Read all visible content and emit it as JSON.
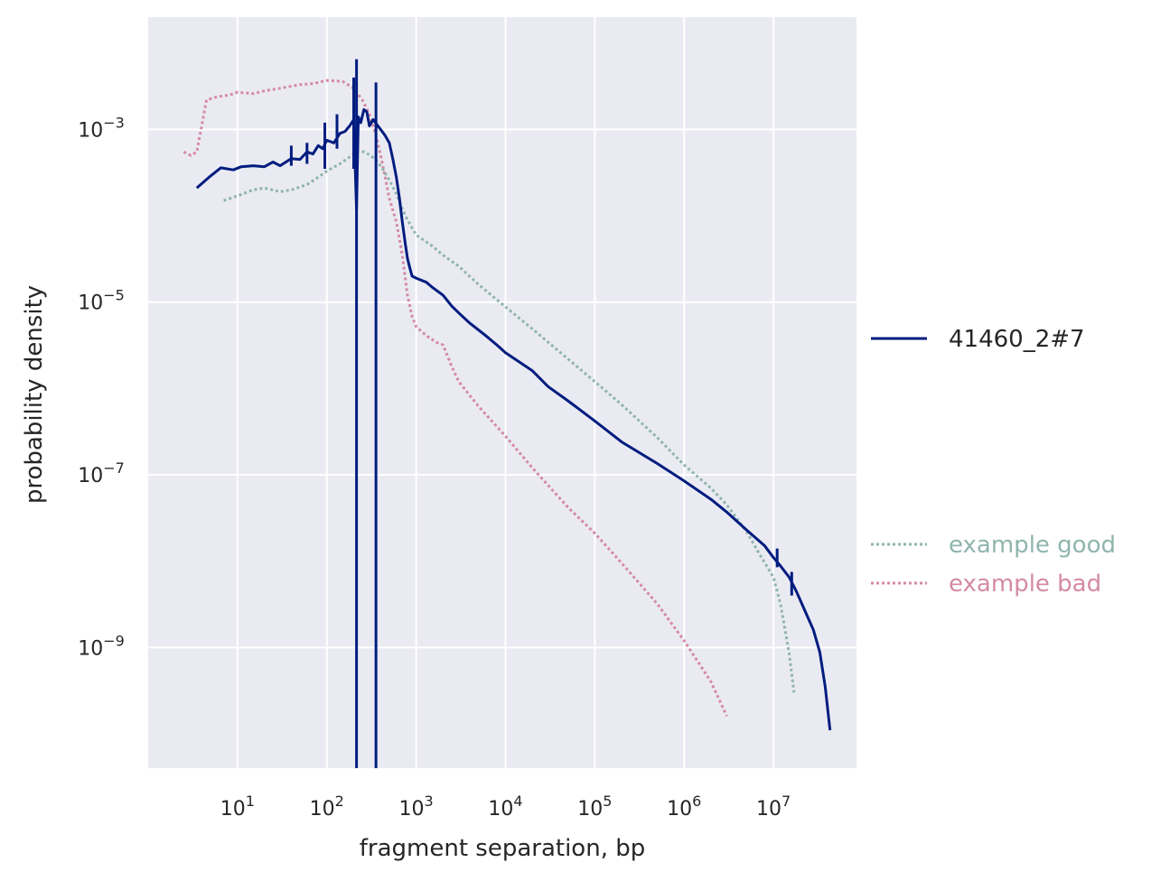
{
  "chart_data": {
    "type": "line",
    "title": "",
    "xlabel": "fragment separation, bp",
    "ylabel": "probability density",
    "xscale": "log",
    "yscale": "log",
    "xlim": [
      1.0,
      85000000
    ],
    "ylim": [
      4e-11,
      0.02
    ],
    "grid": true,
    "x_ticks": [
      {
        "value": 10,
        "base": "10",
        "exp": "1"
      },
      {
        "value": 100,
        "base": "10",
        "exp": "2"
      },
      {
        "value": 1000,
        "base": "10",
        "exp": "3"
      },
      {
        "value": 10000,
        "base": "10",
        "exp": "4"
      },
      {
        "value": 100000,
        "base": "10",
        "exp": "5"
      },
      {
        "value": 1000000,
        "base": "10",
        "exp": "6"
      },
      {
        "value": 10000000,
        "base": "10",
        "exp": "7"
      }
    ],
    "y_ticks": [
      {
        "value": 0.001,
        "base": "10",
        "exp": "−3"
      },
      {
        "value": 1e-05,
        "base": "10",
        "exp": "−5"
      },
      {
        "value": 1e-07,
        "base": "10",
        "exp": "−7"
      },
      {
        "value": 1e-09,
        "base": "10",
        "exp": "−9"
      }
    ],
    "legend": [
      {
        "name": "41460_2#7",
        "color": "#001c7f",
        "style": "solid",
        "placement": "right-middle"
      },
      {
        "name": "example good",
        "color": "#8fb5ad",
        "style": "dotted",
        "placement": "right-lower"
      },
      {
        "name": "example bad",
        "color": "#d48aa6",
        "style": "dotted",
        "placement": "right-lower"
      }
    ],
    "series": [
      {
        "name": "41460_2#7",
        "color": "#001c7f",
        "style": "solid",
        "points": [
          [
            3.5,
            0.00021
          ],
          [
            5,
            0.00029
          ],
          [
            6.5,
            0.00036
          ],
          [
            9,
            0.00034
          ],
          [
            11,
            0.00037
          ],
          [
            15,
            0.00038
          ],
          [
            20,
            0.00037
          ],
          [
            25,
            0.00042
          ],
          [
            30,
            0.00038
          ],
          [
            40,
            0.00046
          ],
          [
            50,
            0.00045
          ],
          [
            60,
            0.00055
          ],
          [
            70,
            0.00052
          ],
          [
            80,
            0.00065
          ],
          [
            90,
            0.0006
          ],
          [
            100,
            0.00075
          ],
          [
            120,
            0.0007
          ],
          [
            140,
            0.0009
          ],
          [
            160,
            0.00095
          ],
          [
            180,
            0.0011
          ],
          [
            200,
            0.0013
          ],
          [
            215,
            0.00012
          ],
          [
            225,
            0.0014
          ],
          [
            240,
            0.0012
          ],
          [
            260,
            0.0017
          ],
          [
            280,
            0.0016
          ],
          [
            300,
            0.0011
          ],
          [
            330,
            0.0013
          ],
          [
            350,
            0.0012
          ],
          [
            400,
            0.001
          ],
          [
            450,
            0.00085
          ],
          [
            500,
            0.0007
          ],
          [
            550,
            0.00045
          ],
          [
            600,
            0.00028
          ],
          [
            650,
            0.00016
          ],
          [
            700,
            8.5e-05
          ],
          [
            750,
            5e-05
          ],
          [
            800,
            3.2e-05
          ],
          [
            850,
            2.5e-05
          ],
          [
            900,
            2e-05
          ],
          [
            1000,
            1.9e-05
          ],
          [
            1300,
            1.7e-05
          ],
          [
            1500,
            1.5e-05
          ],
          [
            2000,
            1.2e-05
          ],
          [
            2500,
            9e-06
          ],
          [
            3000,
            7.5e-06
          ],
          [
            4000,
            5.7e-06
          ],
          [
            6000,
            4.1e-06
          ],
          [
            8000,
            3.2e-06
          ],
          [
            10000,
            2.6e-06
          ],
          [
            20000,
            1.6e-06
          ],
          [
            30000,
            1.05e-06
          ],
          [
            50000,
            7.2e-07
          ],
          [
            100000,
            4.2e-07
          ],
          [
            200000,
            2.4e-07
          ],
          [
            500000,
            1.35e-07
          ],
          [
            1000000,
            8.5e-08
          ],
          [
            2000000,
            5.2e-08
          ],
          [
            3000000,
            3.7e-08
          ],
          [
            5000000,
            2.3e-08
          ],
          [
            8000000,
            1.5e-08
          ],
          [
            10000000,
            1.1e-08
          ],
          [
            12000000,
            8.8e-09
          ],
          [
            15000000,
            6.5e-09
          ],
          [
            18000000,
            4.5e-09
          ],
          [
            22000000,
            2.8e-09
          ],
          [
            28000000,
            1.6e-09
          ],
          [
            33000000,
            8.8e-10
          ],
          [
            38000000,
            3.5e-10
          ],
          [
            43000000,
            1.1e-10
          ]
        ],
        "spikes": [
          {
            "x": 215,
            "y_min": 4e-11,
            "y_max": 0.0065
          },
          {
            "x": 355,
            "y_min": 4e-11,
            "y_max": 0.0035
          },
          {
            "x": 200,
            "y_min": 0.00035,
            "y_max": 0.004
          },
          {
            "x": 95,
            "y_min": 0.00035,
            "y_max": 0.0012
          },
          {
            "x": 130,
            "y_min": 0.0006,
            "y_max": 0.0015
          },
          {
            "x": 40,
            "y_min": 0.00038,
            "y_max": 0.00065
          },
          {
            "x": 60,
            "y_min": 0.0004,
            "y_max": 0.0007
          },
          {
            "x": 16000000,
            "y_min": 4e-09,
            "y_max": 7.5e-09
          },
          {
            "x": 11000000,
            "y_min": 8.5e-09,
            "y_max": 1.4e-08
          }
        ]
      },
      {
        "name": "example good",
        "color": "#8fb5ad",
        "style": "dotted",
        "points": [
          [
            7,
            0.00015
          ],
          [
            10,
            0.00017
          ],
          [
            15,
            0.0002
          ],
          [
            20,
            0.00021
          ],
          [
            30,
            0.00019
          ],
          [
            40,
            0.0002
          ],
          [
            60,
            0.00023
          ],
          [
            80,
            0.00028
          ],
          [
            100,
            0.00033
          ],
          [
            140,
            0.0004
          ],
          [
            180,
            0.00048
          ],
          [
            220,
            0.00056
          ],
          [
            260,
            0.00055
          ],
          [
            300,
            0.00051
          ],
          [
            350,
            0.00045
          ],
          [
            420,
            0.00035
          ],
          [
            500,
            0.00026
          ],
          [
            600,
            0.00018
          ],
          [
            700,
            0.00012
          ],
          [
            800,
            9e-05
          ],
          [
            1000,
            6e-05
          ],
          [
            1500,
            4.5e-05
          ],
          [
            2000,
            3.5e-05
          ],
          [
            3000,
            2.6e-05
          ],
          [
            5000,
            1.6e-05
          ],
          [
            10000,
            8.8e-06
          ],
          [
            20000,
            4.9e-06
          ],
          [
            50000,
            2.2e-06
          ],
          [
            100000,
            1.2e-06
          ],
          [
            200000,
            6.5e-07
          ],
          [
            500000,
            2.7e-07
          ],
          [
            1000000,
            1.3e-07
          ],
          [
            2000000,
            7e-08
          ],
          [
            3000000,
            4.5e-08
          ],
          [
            5000000,
            2.2e-08
          ],
          [
            7000000,
            1.2e-08
          ],
          [
            10000000,
            6.5e-09
          ],
          [
            12000000,
            3.2e-09
          ],
          [
            15000000,
            8.5e-10
          ],
          [
            17000000,
            3e-10
          ]
        ]
      },
      {
        "name": "example bad",
        "color": "#d48aa6",
        "style": "dotted",
        "points": [
          [
            2.5,
            0.00055
          ],
          [
            3,
            0.0005
          ],
          [
            3.5,
            0.00055
          ],
          [
            4.5,
            0.0022
          ],
          [
            6,
            0.0024
          ],
          [
            8,
            0.0025
          ],
          [
            10,
            0.0027
          ],
          [
            15,
            0.0026
          ],
          [
            20,
            0.0028
          ],
          [
            30,
            0.003
          ],
          [
            50,
            0.0033
          ],
          [
            70,
            0.0034
          ],
          [
            100,
            0.0037
          ],
          [
            150,
            0.0036
          ],
          [
            200,
            0.003
          ],
          [
            250,
            0.0022
          ],
          [
            300,
            0.0015
          ],
          [
            350,
            0.0009
          ],
          [
            400,
            0.0005
          ],
          [
            450,
            0.00028
          ],
          [
            500,
            0.00016
          ],
          [
            600,
            8.5e-05
          ],
          [
            700,
            3.5e-05
          ],
          [
            800,
            1.2e-05
          ],
          [
            900,
            6.8e-06
          ],
          [
            1000,
            5.2e-06
          ],
          [
            1300,
            4.1e-06
          ],
          [
            1700,
            3.4e-06
          ],
          [
            2000,
            3.2e-06
          ],
          [
            2500,
            1.8e-06
          ],
          [
            3000,
            1.2e-06
          ],
          [
            5000,
            6.2e-07
          ],
          [
            10000,
            2.8e-07
          ],
          [
            20000,
            1.2e-07
          ],
          [
            50000,
            4.2e-08
          ],
          [
            100000,
            2.1e-08
          ],
          [
            200000,
            9.5e-09
          ],
          [
            500000,
            3.2e-09
          ],
          [
            1000000,
            1.2e-09
          ],
          [
            2000000,
            4e-10
          ],
          [
            3000000,
            1.6e-10
          ]
        ]
      }
    ]
  }
}
